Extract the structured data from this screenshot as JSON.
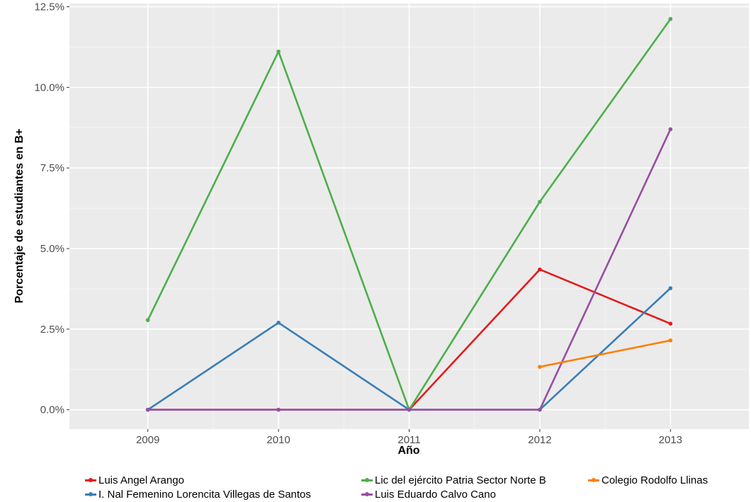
{
  "chart_data": {
    "type": "line",
    "xlabel": "Año",
    "ylabel": "Porcentaje de estudiantes en B+",
    "categories": [
      "2009",
      "2010",
      "2011",
      "2012",
      "2013"
    ],
    "ylim": [
      -0.6,
      12.6
    ],
    "y_ticks": [
      0,
      2.5,
      5,
      7.5,
      10,
      12.5
    ],
    "y_tick_labels": [
      "0.0%",
      "2.5%",
      "5.0%",
      "7.5%",
      "10.0%",
      "12.5%"
    ],
    "grid": true,
    "legend_position": "bottom",
    "series": [
      {
        "name": "Luis Angel Arango",
        "color": "#e41a1c",
        "points": [
          [
            2009,
            0.0
          ],
          [
            2010,
            0.0
          ],
          [
            2011,
            0.0
          ],
          [
            2012,
            4.35
          ],
          [
            2013,
            2.67
          ]
        ]
      },
      {
        "name": "I. Nal Femenino Lorencita Villegas de Santos",
        "color": "#377eb8",
        "points": [
          [
            2009,
            0.0
          ],
          [
            2010,
            2.7
          ],
          [
            2011,
            0.0
          ],
          [
            2012,
            0.0
          ],
          [
            2013,
            3.77
          ]
        ]
      },
      {
        "name": "Lic del ejército Patria Sector Norte B",
        "color": "#4daf4a",
        "points": [
          [
            2009,
            2.78
          ],
          [
            2010,
            11.11
          ],
          [
            2011,
            0.0
          ],
          [
            2012,
            6.45
          ],
          [
            2013,
            12.12
          ]
        ]
      },
      {
        "name": "Luis Eduardo Calvo Cano",
        "color": "#984ea3",
        "points": [
          [
            2009,
            0.0
          ],
          [
            2010,
            0.0
          ],
          [
            2011,
            0.0
          ],
          [
            2012,
            0.0
          ],
          [
            2013,
            8.7
          ]
        ]
      },
      {
        "name": "Colegio Rodolfo Llinas",
        "color": "#ff7f00",
        "points": [
          [
            2012,
            1.33
          ],
          [
            2013,
            2.15
          ]
        ]
      }
    ]
  }
}
